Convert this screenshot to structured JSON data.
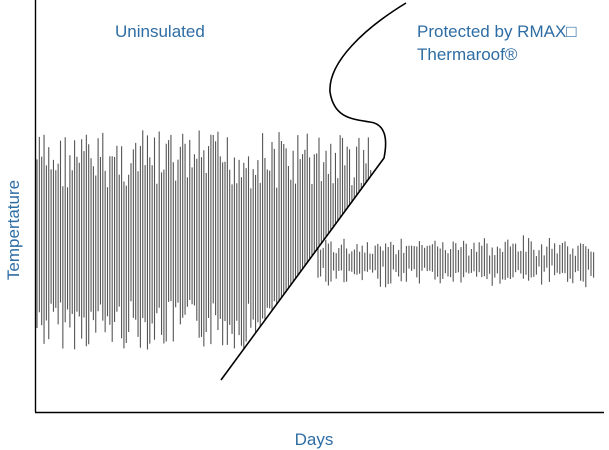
{
  "chart_data": {
    "type": "line",
    "xlabel": "Days",
    "ylabel": "Tempertature",
    "annotations": {
      "left": "Uninsulated",
      "right_line1": "Protected by RMAX□",
      "right_line2": "Thermaroof®"
    },
    "x_ticks": [],
    "y_ticks": [],
    "grid": false,
    "legend": "none",
    "series": [
      {
        "segment": "uninsulated",
        "description_values": {
          "swing_fraction_of_axis": 0.45,
          "center_fraction_of_axis": 0.4
        }
      },
      {
        "segment": "protected",
        "description_values": {
          "swing_fraction_of_axis": 0.1,
          "center_fraction_of_axis": 0.4
        }
      }
    ]
  },
  "colors": {
    "axis": "#000000",
    "series": "#555555",
    "text": "#2e6da4",
    "separator": "#000000"
  }
}
